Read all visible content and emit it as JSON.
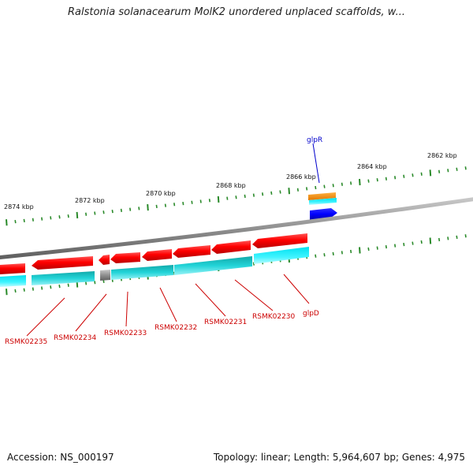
{
  "title": "Ralstonia solanacearum MolK2 unordered unplaced scaffolds, w...",
  "footer": {
    "accession": "Accession: NS_000197",
    "summary": "Topology: linear; Length: 5,964,607 bp; Genes: 4,975"
  },
  "scale_labels": [
    "2874 kbp",
    "2872 kbp",
    "2870 kbp",
    "2868 kbp",
    "2866 kbp",
    "2864 kbp",
    "2862 kbp"
  ],
  "genes_top": [
    {
      "name": "glpR",
      "color": "#0000cc"
    }
  ],
  "genes_bottom": [
    {
      "name": "RSMK02235",
      "color": "#cc0000"
    },
    {
      "name": "RSMK02234",
      "color": "#cc0000"
    },
    {
      "name": "RSMK02233",
      "color": "#cc0000"
    },
    {
      "name": "RSMK02232",
      "color": "#cc0000"
    },
    {
      "name": "RSMK02231",
      "color": "#cc0000"
    },
    {
      "name": "RSMK02230",
      "color": "#cc0000"
    },
    {
      "name": "glpD",
      "color": "#cc0000"
    }
  ],
  "colors": {
    "cds": "#ff0000",
    "gene": "#00d8e0",
    "forward_gene": "#0000ff",
    "forward_extra": "#ff8c00",
    "backbone": "#808080",
    "tick": "#2a8a2a",
    "label_red": "#cc0000",
    "label_blue": "#0000cc"
  }
}
